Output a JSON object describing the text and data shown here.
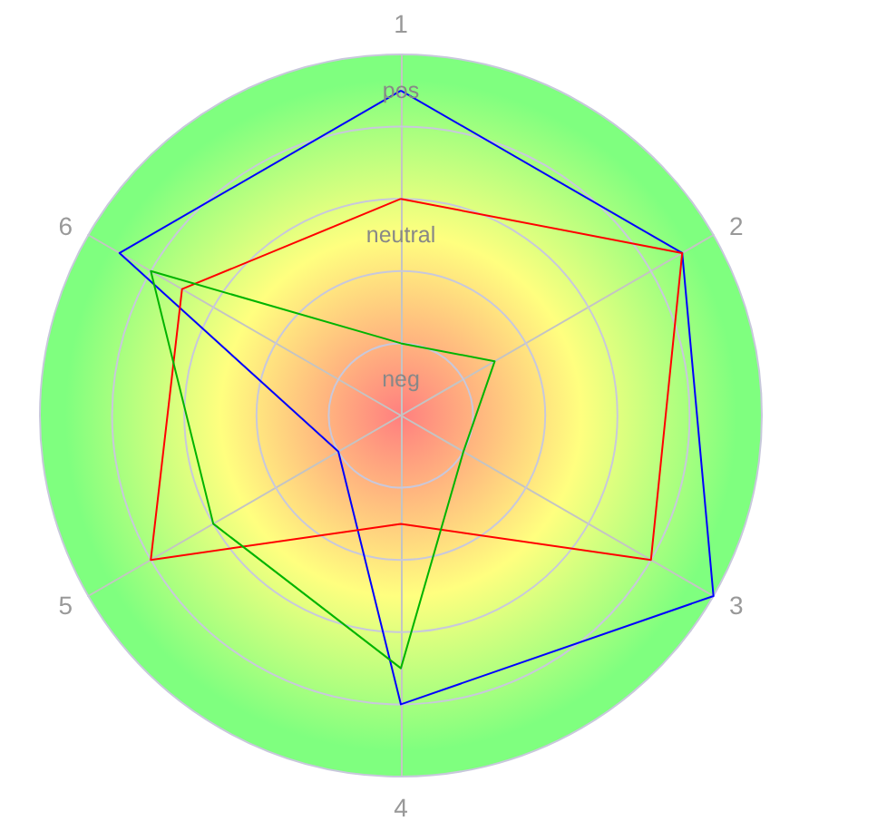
{
  "chart_data": {
    "type": "radar",
    "categories": [
      "1",
      "2",
      "3",
      "4",
      "5",
      "6"
    ],
    "series": [
      {
        "color": "#0000ff",
        "values": [
          0.9,
          0.9,
          1.0,
          0.8,
          0.2,
          0.9
        ]
      },
      {
        "color": "#ff0000",
        "values": [
          0.6,
          0.9,
          0.8,
          0.3,
          0.8,
          0.7
        ]
      },
      {
        "color": "#00b400",
        "values": [
          0.2,
          0.3,
          0.2,
          0.7,
          0.6,
          0.8
        ]
      }
    ],
    "ylim": [
      0,
      1
    ],
    "yticks": [
      {
        "value": 0.1,
        "label": "neg"
      },
      {
        "value": 0.5,
        "label": "neutral"
      },
      {
        "value": 0.9,
        "label": "pos"
      }
    ],
    "grid": true,
    "marker": "none",
    "line_style": "solid"
  }
}
